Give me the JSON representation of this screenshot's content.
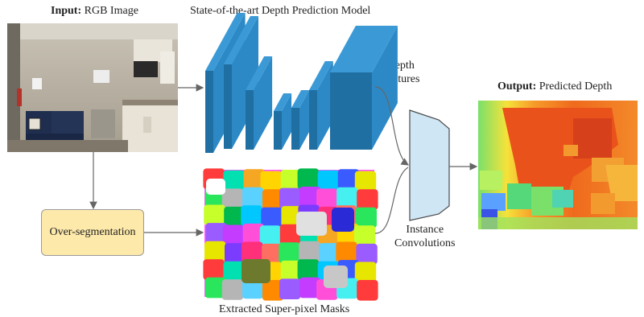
{
  "input": {
    "label_bold": "Input:",
    "label_rest": " RGB Image"
  },
  "model": {
    "title": "State-of-the-art Depth Prediction Model"
  },
  "depth_features": {
    "line1": "Depth",
    "line2": "Features"
  },
  "oversegmentation": {
    "label": "Over-segmentation"
  },
  "superpixels": {
    "caption": "Extracted Super-pixel Masks"
  },
  "instance_conv": {
    "line1": "Instance",
    "line2": "Convolutions"
  },
  "output": {
    "label_bold": "Output:",
    "label_rest": " Predicted Depth"
  },
  "colors": {
    "network_front": "#1f6fa3",
    "network_side": "#2d89c6",
    "network_top": "#3b9ad6",
    "instance_conv_fill": "#cfe6f5",
    "oversegmentation_fill": "#fde9aa",
    "arrow": "#666666"
  }
}
